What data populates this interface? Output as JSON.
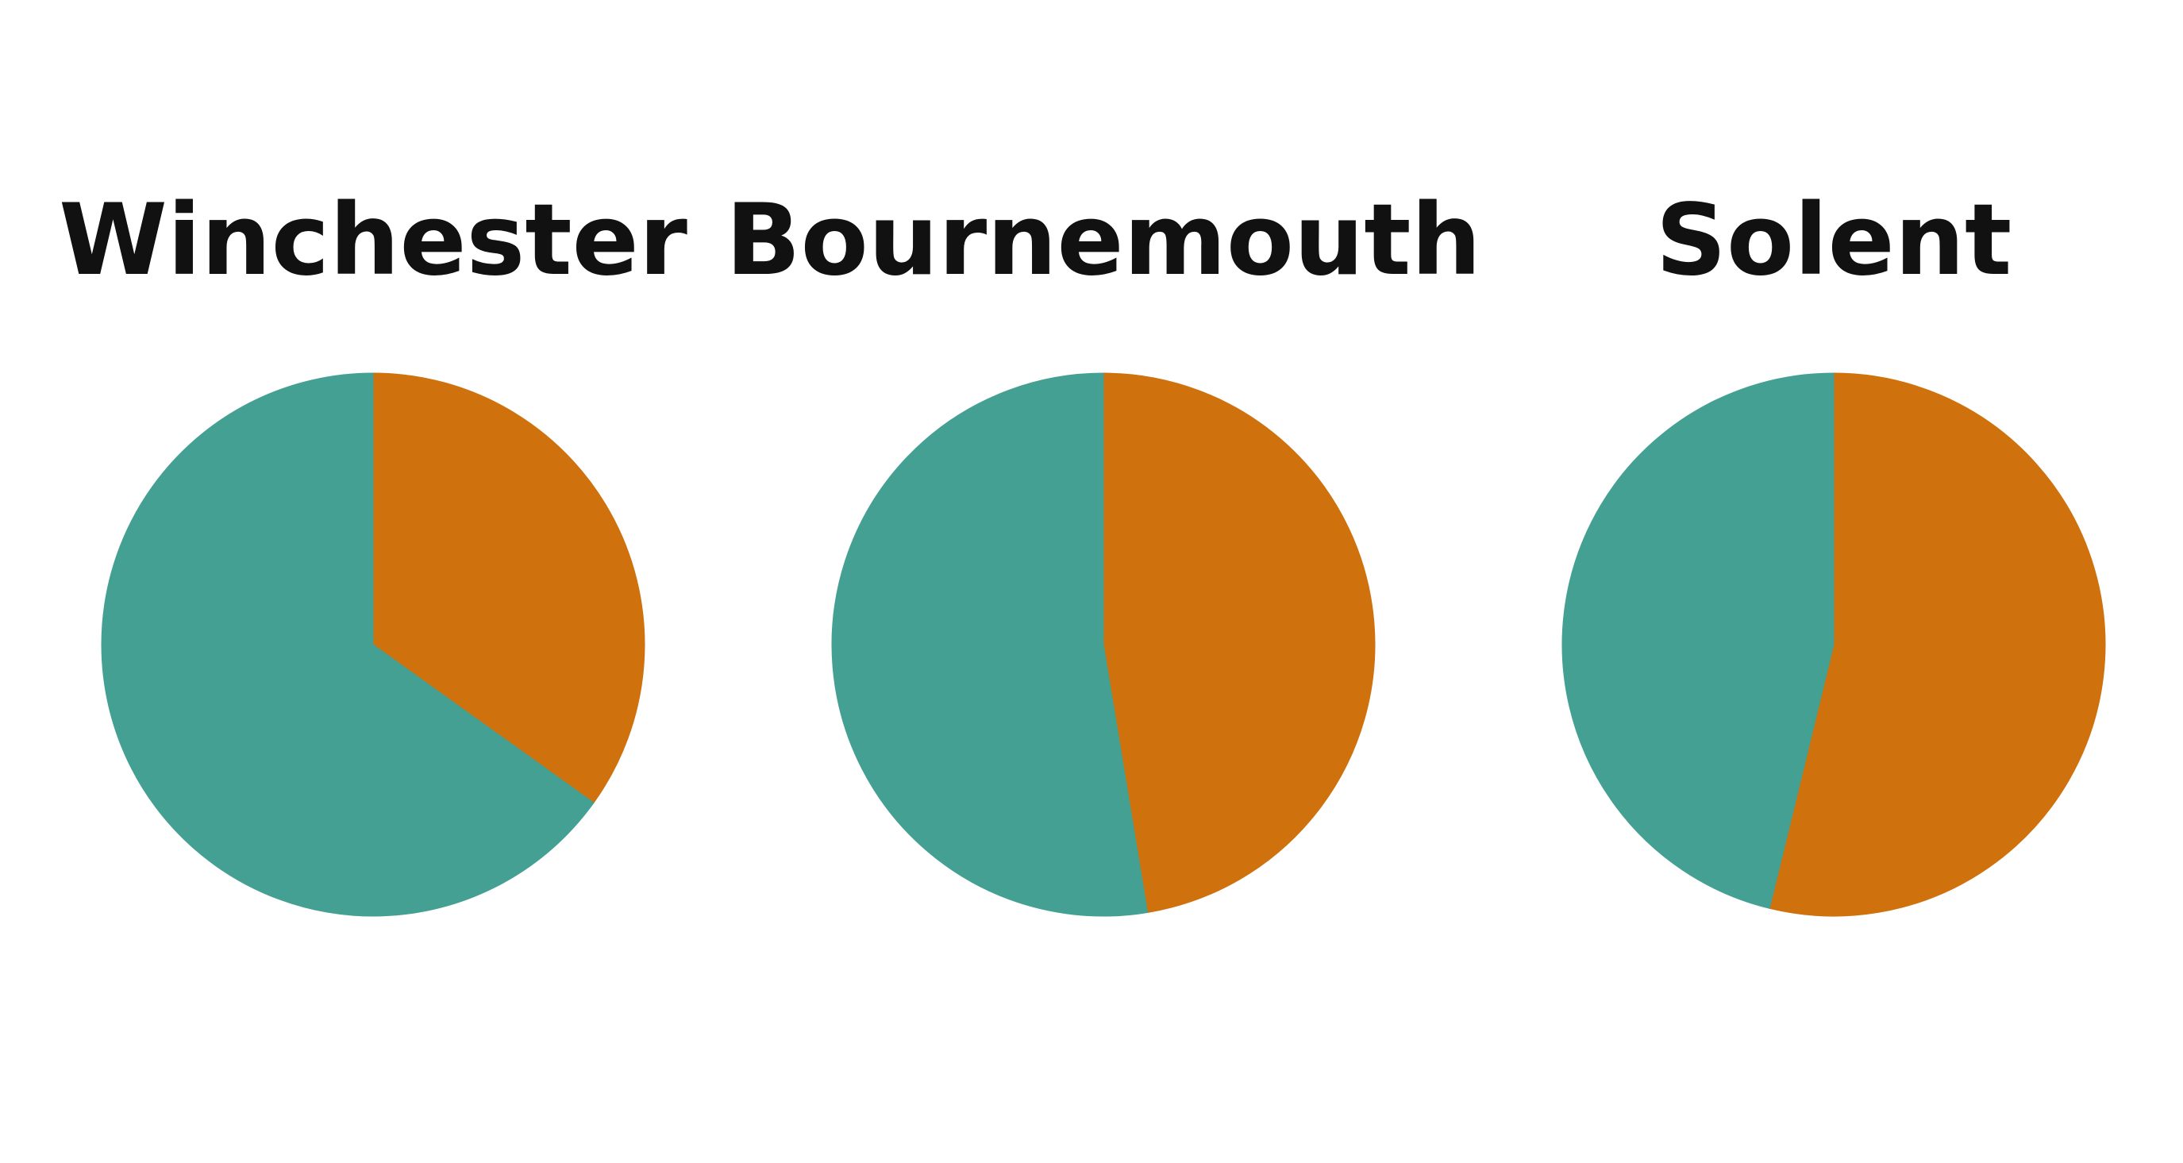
{
  "chart_data": [
    {
      "type": "pie",
      "title": "Winchester",
      "series": [
        {
          "color": "#cf710d",
          "value": 34.9
        },
        {
          "color": "#44a092",
          "value": 65.1
        }
      ]
    },
    {
      "type": "pie",
      "title": "Bournemouth",
      "series": [
        {
          "color": "#cf710d",
          "value": 47.4
        },
        {
          "color": "#44a092",
          "value": 52.6
        }
      ]
    },
    {
      "type": "pie",
      "title": "Solent",
      "series": [
        {
          "color": "#cf710d",
          "value": 53.8
        },
        {
          "color": "#44a092",
          "value": 46.2
        }
      ]
    }
  ]
}
